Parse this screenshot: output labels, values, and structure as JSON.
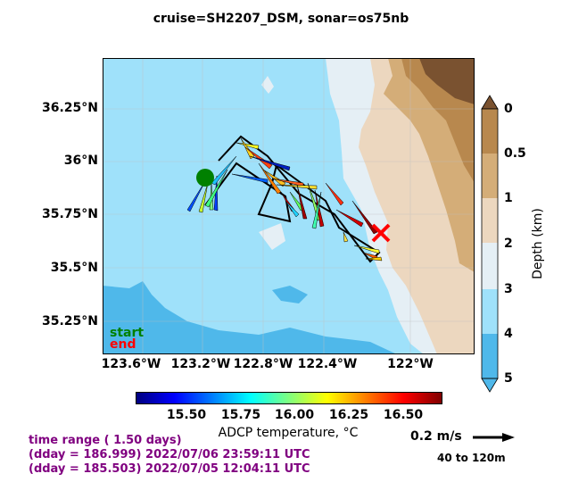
{
  "title": "cruise=SH2207_DSM,   sonar=os75nb",
  "map": {
    "lat_ticks": [
      "36.25°N",
      "36°N",
      "35.75°N",
      "35.5°N",
      "35.25°N"
    ],
    "lon_ticks": [
      "123.6°W",
      "123.2°W",
      "122.8°W",
      "122.4°W",
      "122°W"
    ]
  },
  "legend": {
    "start": "start",
    "end": "end"
  },
  "depth_colorbar": {
    "label": "Depth (km)",
    "ticks": [
      "0",
      "0.5",
      "1",
      "2",
      "3",
      "4",
      "5"
    ],
    "colors": [
      "#7a5230",
      "#b8884e",
      "#d4ad78",
      "#ecd7bf",
      "#e5eff5",
      "#9fe1fa",
      "#4fb8ea"
    ]
  },
  "temperature_colorbar": {
    "label": "ADCP temperature, °C",
    "ticks": [
      "15.50",
      "15.75",
      "16.00",
      "16.25",
      "16.50"
    ]
  },
  "info": {
    "range": "time range ( 1.50 days)",
    "end": "(dday = 186.999) 2022/07/06 23:59:11 UTC",
    "start": "(dday = 185.503) 2022/07/05 12:04:11 UTC"
  },
  "scale": {
    "label": "0.2 m/s",
    "depth_range": "40 to 120m"
  }
}
